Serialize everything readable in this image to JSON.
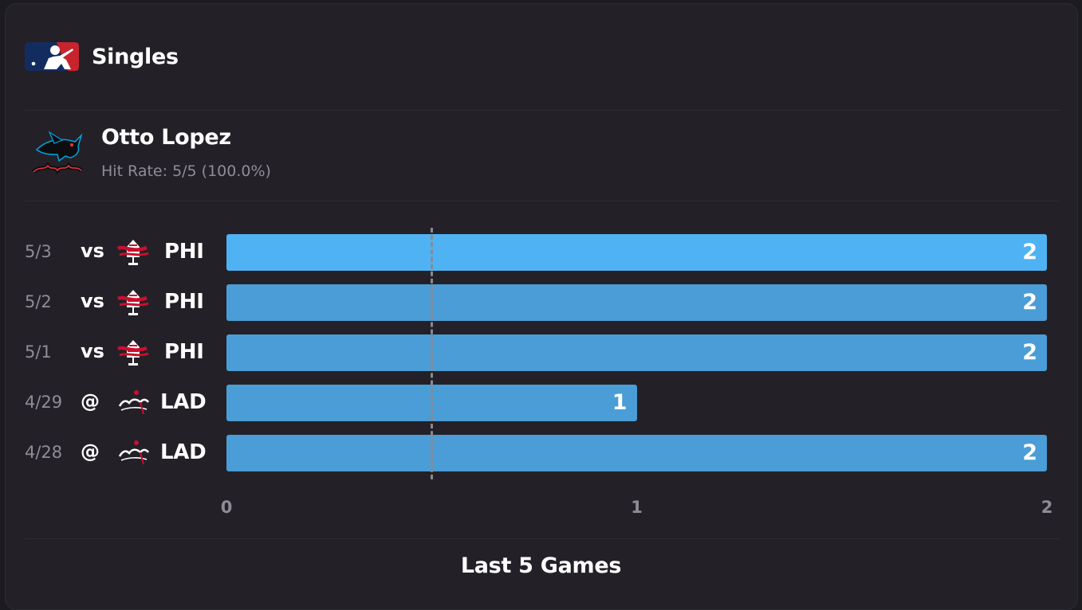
{
  "header": {
    "logo_icon": "mlb-logo-icon",
    "title": "Singles"
  },
  "player": {
    "team_logo_icon": "marlins-logo-icon",
    "name": "Otto Lopez",
    "hit_rate": "Hit Rate: 5/5 (100.0%)"
  },
  "chart_data": {
    "type": "bar",
    "orientation": "horizontal",
    "categories": [
      "5/3",
      "5/2",
      "5/1",
      "4/29",
      "4/28"
    ],
    "values": [
      2,
      2,
      2,
      1,
      2
    ],
    "xlim": [
      0,
      2
    ],
    "x_ticks": [
      "0",
      "1",
      "2"
    ],
    "reference_line": 0.5,
    "games": [
      {
        "date": "5/3",
        "location": "vs",
        "team": "PHI",
        "team_icon": "phillies-logo-icon",
        "value": 2,
        "label": "2"
      },
      {
        "date": "5/2",
        "location": "vs",
        "team": "PHI",
        "team_icon": "phillies-logo-icon",
        "value": 2,
        "label": "2"
      },
      {
        "date": "5/1",
        "location": "vs",
        "team": "PHI",
        "team_icon": "phillies-logo-icon",
        "value": 2,
        "label": "2"
      },
      {
        "date": "4/29",
        "location": "@",
        "team": "LAD",
        "team_icon": "dodgers-logo-icon",
        "value": 1,
        "label": "1"
      },
      {
        "date": "4/28",
        "location": "@",
        "team": "LAD",
        "team_icon": "dodgers-logo-icon",
        "value": 2,
        "label": "2"
      }
    ],
    "colors": {
      "highlight_bar": "#4fb2f3",
      "bar": "#4a9dd6",
      "reference_line": "#8a8990"
    }
  },
  "footer": {
    "title": "Last 5 Games"
  }
}
